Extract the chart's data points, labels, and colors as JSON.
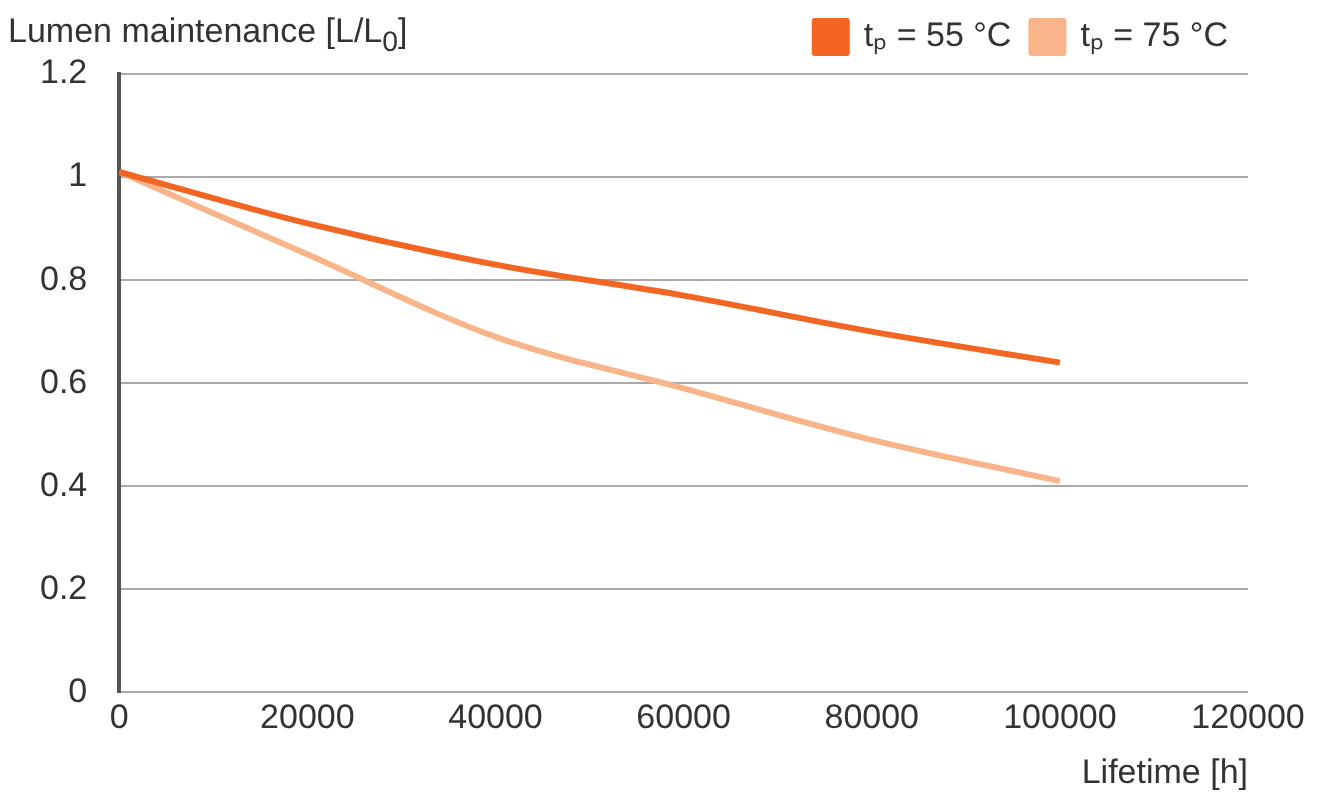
{
  "chart_data": {
    "type": "line",
    "ylabel": "Lumen maintenance [L/L$_{0}$]",
    "xlabel": "Lifetime [h]",
    "x": [
      0,
      20000,
      40000,
      60000,
      80000,
      100000
    ],
    "series": [
      {
        "name": "tₚ = 55 °C",
        "color": "#f26522",
        "values": [
          1.01,
          0.91,
          0.83,
          0.77,
          0.7,
          0.64
        ]
      },
      {
        "name": "tₚ = 75 °C",
        "color": "#f9b48a",
        "values": [
          1.01,
          0.85,
          0.69,
          0.59,
          0.49,
          0.41
        ]
      }
    ],
    "xlim": [
      0,
      120000
    ],
    "xticks": [
      0,
      20000,
      40000,
      60000,
      80000,
      100000,
      120000
    ],
    "ylim": [
      0,
      1.2
    ],
    "yticks": [
      0,
      0.2,
      0.4,
      0.6,
      0.8,
      1,
      1.2
    ],
    "grid": "y",
    "legend": "top right",
    "marker": "none",
    "line_style": "solid"
  }
}
